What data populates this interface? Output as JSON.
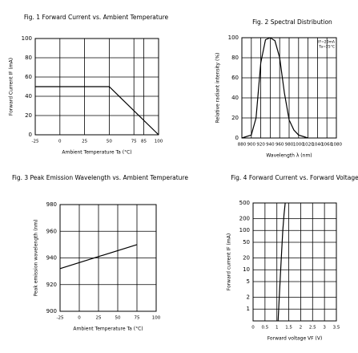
{
  "chart_data": [
    {
      "type": "line",
      "title": "Fig. 1 Forward Current vs. Ambient Temperature",
      "xlabel": "Ambient Temperature Ta (°C)",
      "ylabel": "Forward Current IF (mA)",
      "x": [
        -25,
        50,
        100
      ],
      "values": [
        50,
        50,
        0
      ],
      "color": "#000000",
      "xlim": [
        -25,
        100
      ],
      "xticks": [
        -25,
        0,
        25,
        50,
        75,
        85,
        100
      ],
      "ylim": [
        0,
        100
      ],
      "yticks": [
        0,
        20,
        40,
        60,
        80,
        100
      ],
      "grid": true,
      "log_y": false
    },
    {
      "type": "line",
      "title": "Fig. 2 Spectral Distribution",
      "xlabel": "Wavelength λ (nm)",
      "ylabel": "Relative radiant intensity (%)",
      "annotations": [
        "IF=20mA",
        "Ta=25°C"
      ],
      "x": [
        880,
        900,
        910,
        920,
        930,
        940,
        950,
        960,
        970,
        980,
        990,
        1000,
        1020
      ],
      "values": [
        0,
        3,
        20,
        75,
        98,
        100,
        97,
        80,
        45,
        18,
        8,
        3,
        0
      ],
      "color": "#000000",
      "xlim": [
        880,
        1080
      ],
      "xticks": [
        880,
        900,
        920,
        940,
        960,
        980,
        1000,
        1020,
        1040,
        1060,
        1080
      ],
      "ylim": [
        0,
        100
      ],
      "yticks": [
        0,
        20,
        40,
        60,
        80,
        100
      ],
      "grid": true,
      "log_y": false
    },
    {
      "type": "line",
      "title": "Fig. 3 Peak Emission Wavelength vs. Ambient Temperature",
      "xlabel": "Ambient Temperature Ta (°C)",
      "ylabel": "Peak emission wavelength (nm)",
      "x": [
        -25,
        75
      ],
      "values": [
        932,
        950
      ],
      "color": "#000000",
      "xlim": [
        -25,
        100
      ],
      "xticks": [
        -25,
        0,
        25,
        50,
        75,
        100
      ],
      "ylim": [
        900,
        980
      ],
      "yticks": [
        900,
        920,
        940,
        960,
        980
      ],
      "grid": true,
      "log_y": false
    },
    {
      "type": "line",
      "title": "Fig. 4 Forward Current vs. Forward Voltage",
      "xlabel": "Forward voltage VF (V)",
      "ylabel": "Forward current IF (mA)",
      "x": [
        1.05,
        1.1,
        1.15,
        1.2,
        1.25,
        1.3,
        1.35
      ],
      "values": [
        0.5,
        2,
        8,
        30,
        100,
        250,
        500
      ],
      "color": "#000000",
      "xlim": [
        0,
        3.5
      ],
      "xticks": [
        0,
        0.5,
        1,
        1.5,
        2,
        2.5,
        3,
        3.5
      ],
      "ylim": [
        0.5,
        500
      ],
      "yticks": [
        1,
        2,
        5,
        10,
        20,
        50,
        100,
        200,
        500
      ],
      "grid": true,
      "log_y": true
    }
  ]
}
